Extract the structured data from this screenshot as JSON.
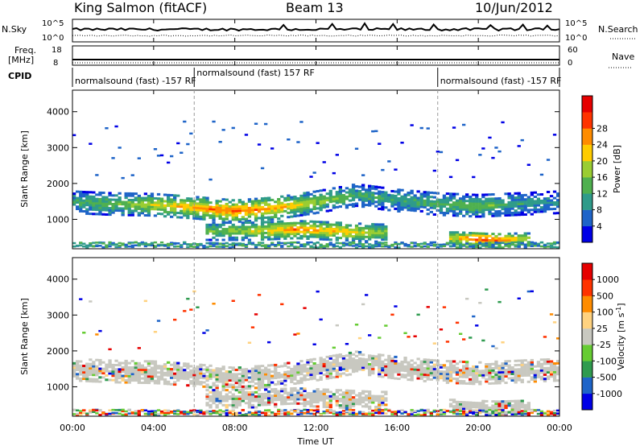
{
  "header": {
    "station": "King Salmon (fitACF)",
    "beam": "Beam 13",
    "date": "10/Jun/2012"
  },
  "top_panel": {
    "nsky_label": "N.Sky",
    "nsearch_label": "N.Search",
    "nsky_ticks": [
      "10^5",
      "10^0"
    ],
    "nsearch_ticks": [
      "10^5",
      "10^0"
    ],
    "freq_label_line1": "Freq.",
    "freq_label_line2": "[MHz]",
    "nave_label": "Nave",
    "freq_ticks": [
      "18",
      "8"
    ],
    "nave_ticks": [
      "60",
      "0"
    ],
    "cpid_label": "CPID",
    "cpid_segments": [
      {
        "label": "normalsound (fast) -157 RF",
        "start_hour": 0,
        "end_hour": 6
      },
      {
        "label": "normalsound (fast) 157 RF",
        "start_hour": 6,
        "end_hour": 18
      },
      {
        "label": "normalsound (fast) -157 RF",
        "start_hour": 18,
        "end_hour": 24
      }
    ]
  },
  "chart_data": [
    {
      "type": "heatmap",
      "title": "",
      "xlabel": "",
      "ylabel": "Slant Range [km]",
      "xlim": [
        0,
        24
      ],
      "ylim": [
        180,
        4600
      ],
      "yticks": [
        "1000",
        "2000",
        "3000",
        "4000"
      ],
      "colorbar": {
        "label": "Power [dB]",
        "ticks": [
          "4",
          "8",
          "12",
          "16",
          "20",
          "24",
          "28"
        ],
        "colors": [
          "#0000e6",
          "#1e64c8",
          "#2f9b8a",
          "#4fb04f",
          "#9acd32",
          "#ffcc00",
          "#ff8c00",
          "#ff3300",
          "#e60000"
        ]
      },
      "bands": [
        {
          "name": "main",
          "x": [
            0,
            2,
            4,
            6,
            8,
            10,
            12,
            14,
            16,
            18,
            20,
            22,
            24
          ],
          "center_km": [
            1450,
            1400,
            1380,
            1300,
            1200,
            1280,
            1450,
            1650,
            1500,
            1400,
            1350,
            1400,
            1450
          ],
          "width_km": 300,
          "peak_db": [
            12,
            13,
            18,
            22,
            26,
            22,
            16,
            12,
            10,
            12,
            14,
            10,
            8
          ]
        },
        {
          "name": "lower",
          "x": [
            7,
            9,
            11,
            13,
            15
          ],
          "center_km": [
            650,
            650,
            700,
            650,
            600
          ],
          "width_km": 250,
          "peak_db": [
            14,
            18,
            24,
            22,
            16
          ]
        },
        {
          "name": "low-range",
          "x": [
            19,
            20,
            21,
            22
          ],
          "center_km": [
            450,
            420,
            400,
            420
          ],
          "width_km": 200,
          "peak_db": [
            20,
            28,
            26,
            18
          ]
        }
      ]
    },
    {
      "type": "heatmap",
      "title": "",
      "xlabel": "Time UT",
      "ylabel": "Slant Range [km]",
      "xlim": [
        0,
        24
      ],
      "ylim": [
        180,
        4600
      ],
      "xticks": [
        "00:00",
        "04:00",
        "08:00",
        "12:00",
        "16:00",
        "20:00",
        "00:00"
      ],
      "yticks": [
        "1000",
        "2000",
        "3000",
        "4000"
      ],
      "colorbar": {
        "label": "Velocity [m s^-1]",
        "ticks": [
          "1000",
          "500",
          "100",
          "25",
          "-25",
          "-100",
          "-500",
          "-1000"
        ],
        "colors": [
          "#0000e6",
          "#1e64c8",
          "#2f9b4f",
          "#66cc33",
          "#c8c8c0",
          "#ffd27f",
          "#ff8c00",
          "#ff3300",
          "#e60000"
        ]
      }
    }
  ]
}
